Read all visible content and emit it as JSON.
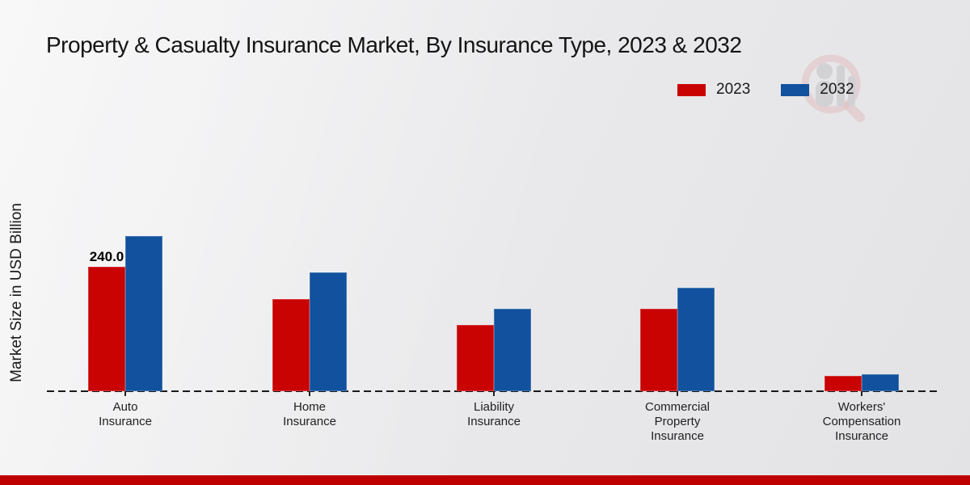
{
  "page": {
    "title": "Property & Casualty Insurance Market, By Insurance Type, 2023 & 2032"
  },
  "y_axis": {
    "label": "Market Size in USD Billion"
  },
  "legend": {
    "items": [
      {
        "label": "2023",
        "color": "#c90202"
      },
      {
        "label": "2032",
        "color": "#11519e"
      }
    ]
  },
  "chart_data": {
    "type": "bar",
    "title": "Property & Casualty Insurance Market, By Insurance Type, 2023 & 2032",
    "xlabel": "",
    "ylabel": "Market Size in USD Billion",
    "units": "USD Billion",
    "grid": false,
    "legend_position": "top-right",
    "baseline_style": "dashed",
    "ylim": [
      0,
      540
    ],
    "categories": [
      "Auto Insurance",
      "Home Insurance",
      "Liability Insurance",
      "Commercial Property Insurance",
      "Workers' Compensation Insurance"
    ],
    "category_label_lines": [
      [
        "Auto",
        "Insurance"
      ],
      [
        "Home",
        "Insurance"
      ],
      [
        "Liability",
        "Insurance"
      ],
      [
        "Commercial",
        "Property",
        "Insurance"
      ],
      [
        "Workers'",
        "Compensation",
        "Insurance"
      ]
    ],
    "series": [
      {
        "name": "2023",
        "color": "#c90202",
        "values": [
          240.0,
          178,
          128,
          159,
          29
        ]
      },
      {
        "name": "2032",
        "color": "#11519e",
        "values": [
          299,
          229,
          159,
          199,
          32
        ]
      }
    ],
    "data_labels": [
      {
        "series": "2023",
        "category": "Auto Insurance",
        "text": "240.0"
      }
    ]
  },
  "watermark": {
    "name": "market-research-logo"
  },
  "footer": {
    "bar_color": "#bf0000"
  }
}
